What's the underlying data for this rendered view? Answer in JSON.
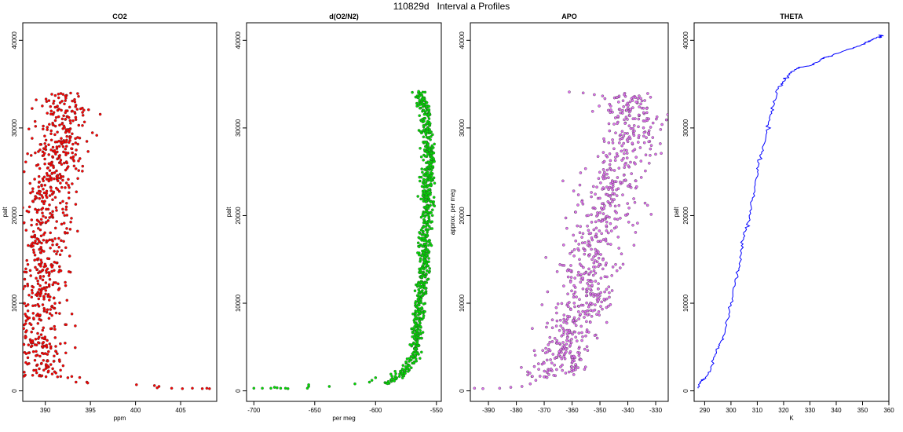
{
  "figure": {
    "title": "110829d   Interval a Profiles"
  },
  "chart_data": [
    {
      "type": "scatter",
      "title": "CO2",
      "xlabel": "ppm",
      "ylabel": "palt",
      "xlim": [
        387.5,
        409.0
      ],
      "ylim": [
        -1200,
        42000
      ],
      "xticks": [
        390,
        395,
        400,
        405
      ],
      "yticks": [
        0,
        10000,
        20000,
        30000,
        40000
      ],
      "color": "#ff0000",
      "profile": [
        [
          390.0,
          1500
        ],
        [
          389.6,
          3000
        ],
        [
          389.0,
          5000
        ],
        [
          388.8,
          7000
        ],
        [
          389.3,
          9000
        ],
        [
          389.2,
          11000
        ],
        [
          389.4,
          13000
        ],
        [
          389.6,
          15000
        ],
        [
          389.9,
          17000
        ],
        [
          390.2,
          19000
        ],
        [
          390.4,
          21000
        ],
        [
          390.8,
          23000
        ],
        [
          391.0,
          25000
        ],
        [
          391.4,
          27000
        ],
        [
          391.8,
          29000
        ],
        [
          392.0,
          31000
        ],
        [
          392.2,
          33000
        ],
        [
          392.0,
          34000
        ]
      ],
      "spread": 1.4,
      "extra_points": [
        [
          392.5,
          1500
        ],
        [
          393.4,
          1000
        ],
        [
          394.6,
          1000
        ],
        [
          394.7,
          900
        ],
        [
          400.1,
          700
        ],
        [
          402.1,
          600
        ],
        [
          402.4,
          350
        ],
        [
          402.6,
          500
        ],
        [
          404.0,
          300
        ],
        [
          405.2,
          250
        ],
        [
          406.3,
          300
        ],
        [
          407.4,
          250
        ],
        [
          407.9,
          300
        ],
        [
          408.2,
          250
        ]
      ],
      "n_points": 760
    },
    {
      "type": "scatter",
      "title": "d(O2/N2)",
      "xlabel": "per meg",
      "ylabel": "palt",
      "xlim": [
        -706,
        -546
      ],
      "ylim": [
        -1200,
        42000
      ],
      "xticks": [
        -700,
        -650,
        -600,
        -550
      ],
      "yticks": [
        0,
        10000,
        20000,
        30000,
        40000
      ],
      "color": "#00e000",
      "profile": [
        [
          -592,
          800
        ],
        [
          -582,
          1500
        ],
        [
          -575,
          2500
        ],
        [
          -568,
          4000
        ],
        [
          -566,
          6000
        ],
        [
          -565,
          8000
        ],
        [
          -564,
          10000
        ],
        [
          -562,
          12000
        ],
        [
          -561,
          14000
        ],
        [
          -560,
          16000
        ],
        [
          -559,
          18000
        ],
        [
          -558,
          20000
        ],
        [
          -558,
          22000
        ],
        [
          -557,
          24000
        ],
        [
          -556,
          26000
        ],
        [
          -557,
          28000
        ],
        [
          -558,
          30000
        ],
        [
          -559,
          32000
        ],
        [
          -563,
          33500
        ],
        [
          -565,
          34200
        ]
      ],
      "spread": 2.5,
      "extra_points": [
        [
          -700,
          300
        ],
        [
          -693,
          300
        ],
        [
          -686,
          300
        ],
        [
          -683,
          400
        ],
        [
          -681,
          350
        ],
        [
          -678,
          300
        ],
        [
          -674,
          300
        ],
        [
          -672,
          250
        ],
        [
          -656,
          300
        ],
        [
          -655,
          500
        ],
        [
          -655,
          700
        ],
        [
          -638,
          500
        ],
        [
          -617,
          800
        ],
        [
          -605,
          1000
        ],
        [
          -603,
          1200
        ],
        [
          -600,
          1500
        ]
      ],
      "n_points": 760
    },
    {
      "type": "scatter",
      "title": "APO",
      "xlabel": "",
      "ylabel": "approx. per meg",
      "xlim": [
        -396.5,
        -325.5
      ],
      "ylim": [
        -1200,
        42000
      ],
      "xticks": [
        -390,
        -380,
        -370,
        -360,
        -350,
        -340,
        -330
      ],
      "yticks": [
        0,
        10000,
        20000,
        30000,
        40000
      ],
      "color": "#e070f0",
      "profile": [
        [
          -368,
          1500
        ],
        [
          -364,
          3000
        ],
        [
          -362,
          5000
        ],
        [
          -360,
          7000
        ],
        [
          -358,
          9000
        ],
        [
          -356,
          11000
        ],
        [
          -354,
          13000
        ],
        [
          -353,
          15000
        ],
        [
          -352,
          17000
        ],
        [
          -350,
          19000
        ],
        [
          -348,
          21000
        ],
        [
          -346,
          23000
        ],
        [
          -344,
          25000
        ],
        [
          -341,
          27000
        ],
        [
          -340,
          29000
        ],
        [
          -339,
          31000
        ],
        [
          -341,
          33000
        ],
        [
          -344,
          34000
        ]
      ],
      "spread": 5.5,
      "extra_points": [
        [
          -395,
          300
        ],
        [
          -392,
          250
        ],
        [
          -386,
          300
        ],
        [
          -382,
          400
        ],
        [
          -378,
          500
        ],
        [
          -375,
          800
        ],
        [
          -373,
          1200
        ],
        [
          -361,
          34100
        ],
        [
          -356,
          34000
        ],
        [
          -352,
          33800
        ],
        [
          -330,
          27000
        ],
        [
          -328,
          27100
        ]
      ],
      "n_points": 760
    },
    {
      "type": "line",
      "title": "THETA",
      "xlabel": "K",
      "ylabel": "palt",
      "xlim": [
        286,
        360
      ],
      "ylim": [
        -1200,
        42000
      ],
      "xticks": [
        290,
        300,
        310,
        320,
        330,
        340,
        350,
        360
      ],
      "yticks": [
        0,
        10000,
        20000,
        30000,
        40000
      ],
      "color": "#0000ff",
      "series": [
        [
          287.5,
          300
        ],
        [
          288.5,
          1100
        ],
        [
          290.5,
          1500
        ],
        [
          292,
          2300
        ],
        [
          294,
          4000
        ],
        [
          295.5,
          5200
        ],
        [
          297,
          6000
        ],
        [
          298.5,
          8000
        ],
        [
          300,
          10000
        ],
        [
          301.5,
          12000
        ],
        [
          303,
          14000
        ],
        [
          304,
          16000
        ],
        [
          305,
          17500
        ],
        [
          306.5,
          19000
        ],
        [
          307.5,
          21000
        ],
        [
          309,
          23000
        ],
        [
          310,
          25000
        ],
        [
          311,
          26500
        ],
        [
          312.5,
          28000
        ],
        [
          314,
          30000
        ],
        [
          315,
          31500
        ],
        [
          316.5,
          33000
        ],
        [
          318,
          34500
        ],
        [
          320,
          35300
        ],
        [
          322,
          36000
        ],
        [
          324,
          36600
        ],
        [
          326,
          36900
        ],
        [
          330,
          37100
        ],
        [
          333,
          37500
        ],
        [
          335,
          38000
        ],
        [
          338,
          38200
        ],
        [
          342,
          38700
        ],
        [
          346,
          39100
        ],
        [
          350,
          39500
        ],
        [
          352,
          39800
        ],
        [
          354,
          40100
        ],
        [
          356,
          40400
        ],
        [
          357,
          40300
        ],
        [
          356.5,
          40600
        ],
        [
          358,
          40500
        ]
      ]
    }
  ]
}
